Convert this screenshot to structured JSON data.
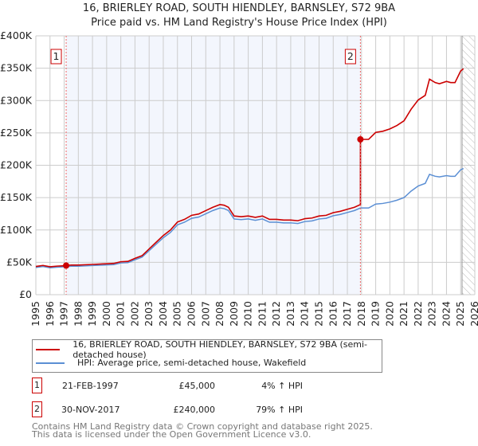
{
  "chart_data": {
    "type": "line",
    "title": "16, BRIERLEY ROAD, SOUTH HIENDLEY, BARNSLEY, S72 9BA",
    "subtitle": "Price paid vs. HM Land Registry's House Price Index (HPI)",
    "xlim": [
      1995,
      2026
    ],
    "ylim": [
      0,
      400000
    ],
    "yticks": [
      "£0",
      "£50K",
      "£100K",
      "£150K",
      "£200K",
      "£250K",
      "£300K",
      "£350K",
      "£400K"
    ],
    "xticks": [
      "1995",
      "1996",
      "1997",
      "1998",
      "1999",
      "2000",
      "2001",
      "2002",
      "2003",
      "2004",
      "2005",
      "2006",
      "2007",
      "2008",
      "2009",
      "2010",
      "2011",
      "2012",
      "2013",
      "2014",
      "2015",
      "2016",
      "2017",
      "2018",
      "2019",
      "2020",
      "2021",
      "2022",
      "2023",
      "2024",
      "2025",
      "2026"
    ],
    "grid": true,
    "hpi": {
      "name": "HPI: Average price, semi-detached house, Wakefield",
      "color": "#5b8fd4",
      "x": [
        1995,
        1995.5,
        1996,
        1996.5,
        1997,
        1997.14,
        1997.5,
        1998,
        1999,
        2000,
        2000.5,
        2001,
        2001.5,
        2002,
        2002.5,
        2003,
        2003.5,
        2004,
        2004.5,
        2005,
        2005.5,
        2006,
        2006.5,
        2007,
        2007.5,
        2008,
        2008.3,
        2008.6,
        2009,
        2009.5,
        2010,
        2010.5,
        2011,
        2011.5,
        2012,
        2012.5,
        2013,
        2013.5,
        2014,
        2014.5,
        2015,
        2015.5,
        2016,
        2016.5,
        2017,
        2017.5,
        2017.92,
        2018.5,
        2019,
        2019.5,
        2020,
        2020.5,
        2021,
        2021.5,
        2022,
        2022.5,
        2022.8,
        2023.2,
        2023.5,
        2024,
        2024.3,
        2024.6,
        2025,
        2025.2
      ],
      "y": [
        42000,
        43500,
        41500,
        42500,
        43000,
        43300,
        44000,
        44000,
        45000,
        46000,
        46500,
        49000,
        49500,
        54000,
        58000,
        68000,
        78000,
        88000,
        96000,
        108000,
        112000,
        118000,
        120000,
        125000,
        130000,
        134000,
        133000,
        130000,
        117000,
        116000,
        117000,
        115000,
        117000,
        112000,
        112000,
        111000,
        111000,
        110000,
        113000,
        114000,
        117000,
        118000,
        122000,
        124000,
        127000,
        130000,
        134000,
        134000,
        140000,
        141000,
        143000,
        146000,
        150000,
        160000,
        168000,
        172000,
        186000,
        183000,
        182000,
        184000,
        183000,
        183000,
        193000,
        195000
      ]
    },
    "sales": [
      {
        "label": "1",
        "date": "21-FEB-1997",
        "x": 1997.14,
        "price": 45000,
        "price_text": "£45,000",
        "hpi_text": "4% ↑ HPI"
      },
      {
        "label": "2",
        "date": "30-NOV-2017",
        "x": 2017.92,
        "price": 240000,
        "price_text": "£240,000",
        "hpi_text": "79% ↑ HPI"
      }
    ],
    "property": {
      "name": "16, BRIERLEY ROAD, SOUTH HIENDLEY, BARNSLEY, S72 9BA (semi-detached house)",
      "color": "#cc0000"
    }
  },
  "footer": {
    "line1": "Contains HM Land Registry data © Crown copyright and database right 2025.",
    "line2": "This data is licensed under the Open Government Licence v3.0."
  }
}
